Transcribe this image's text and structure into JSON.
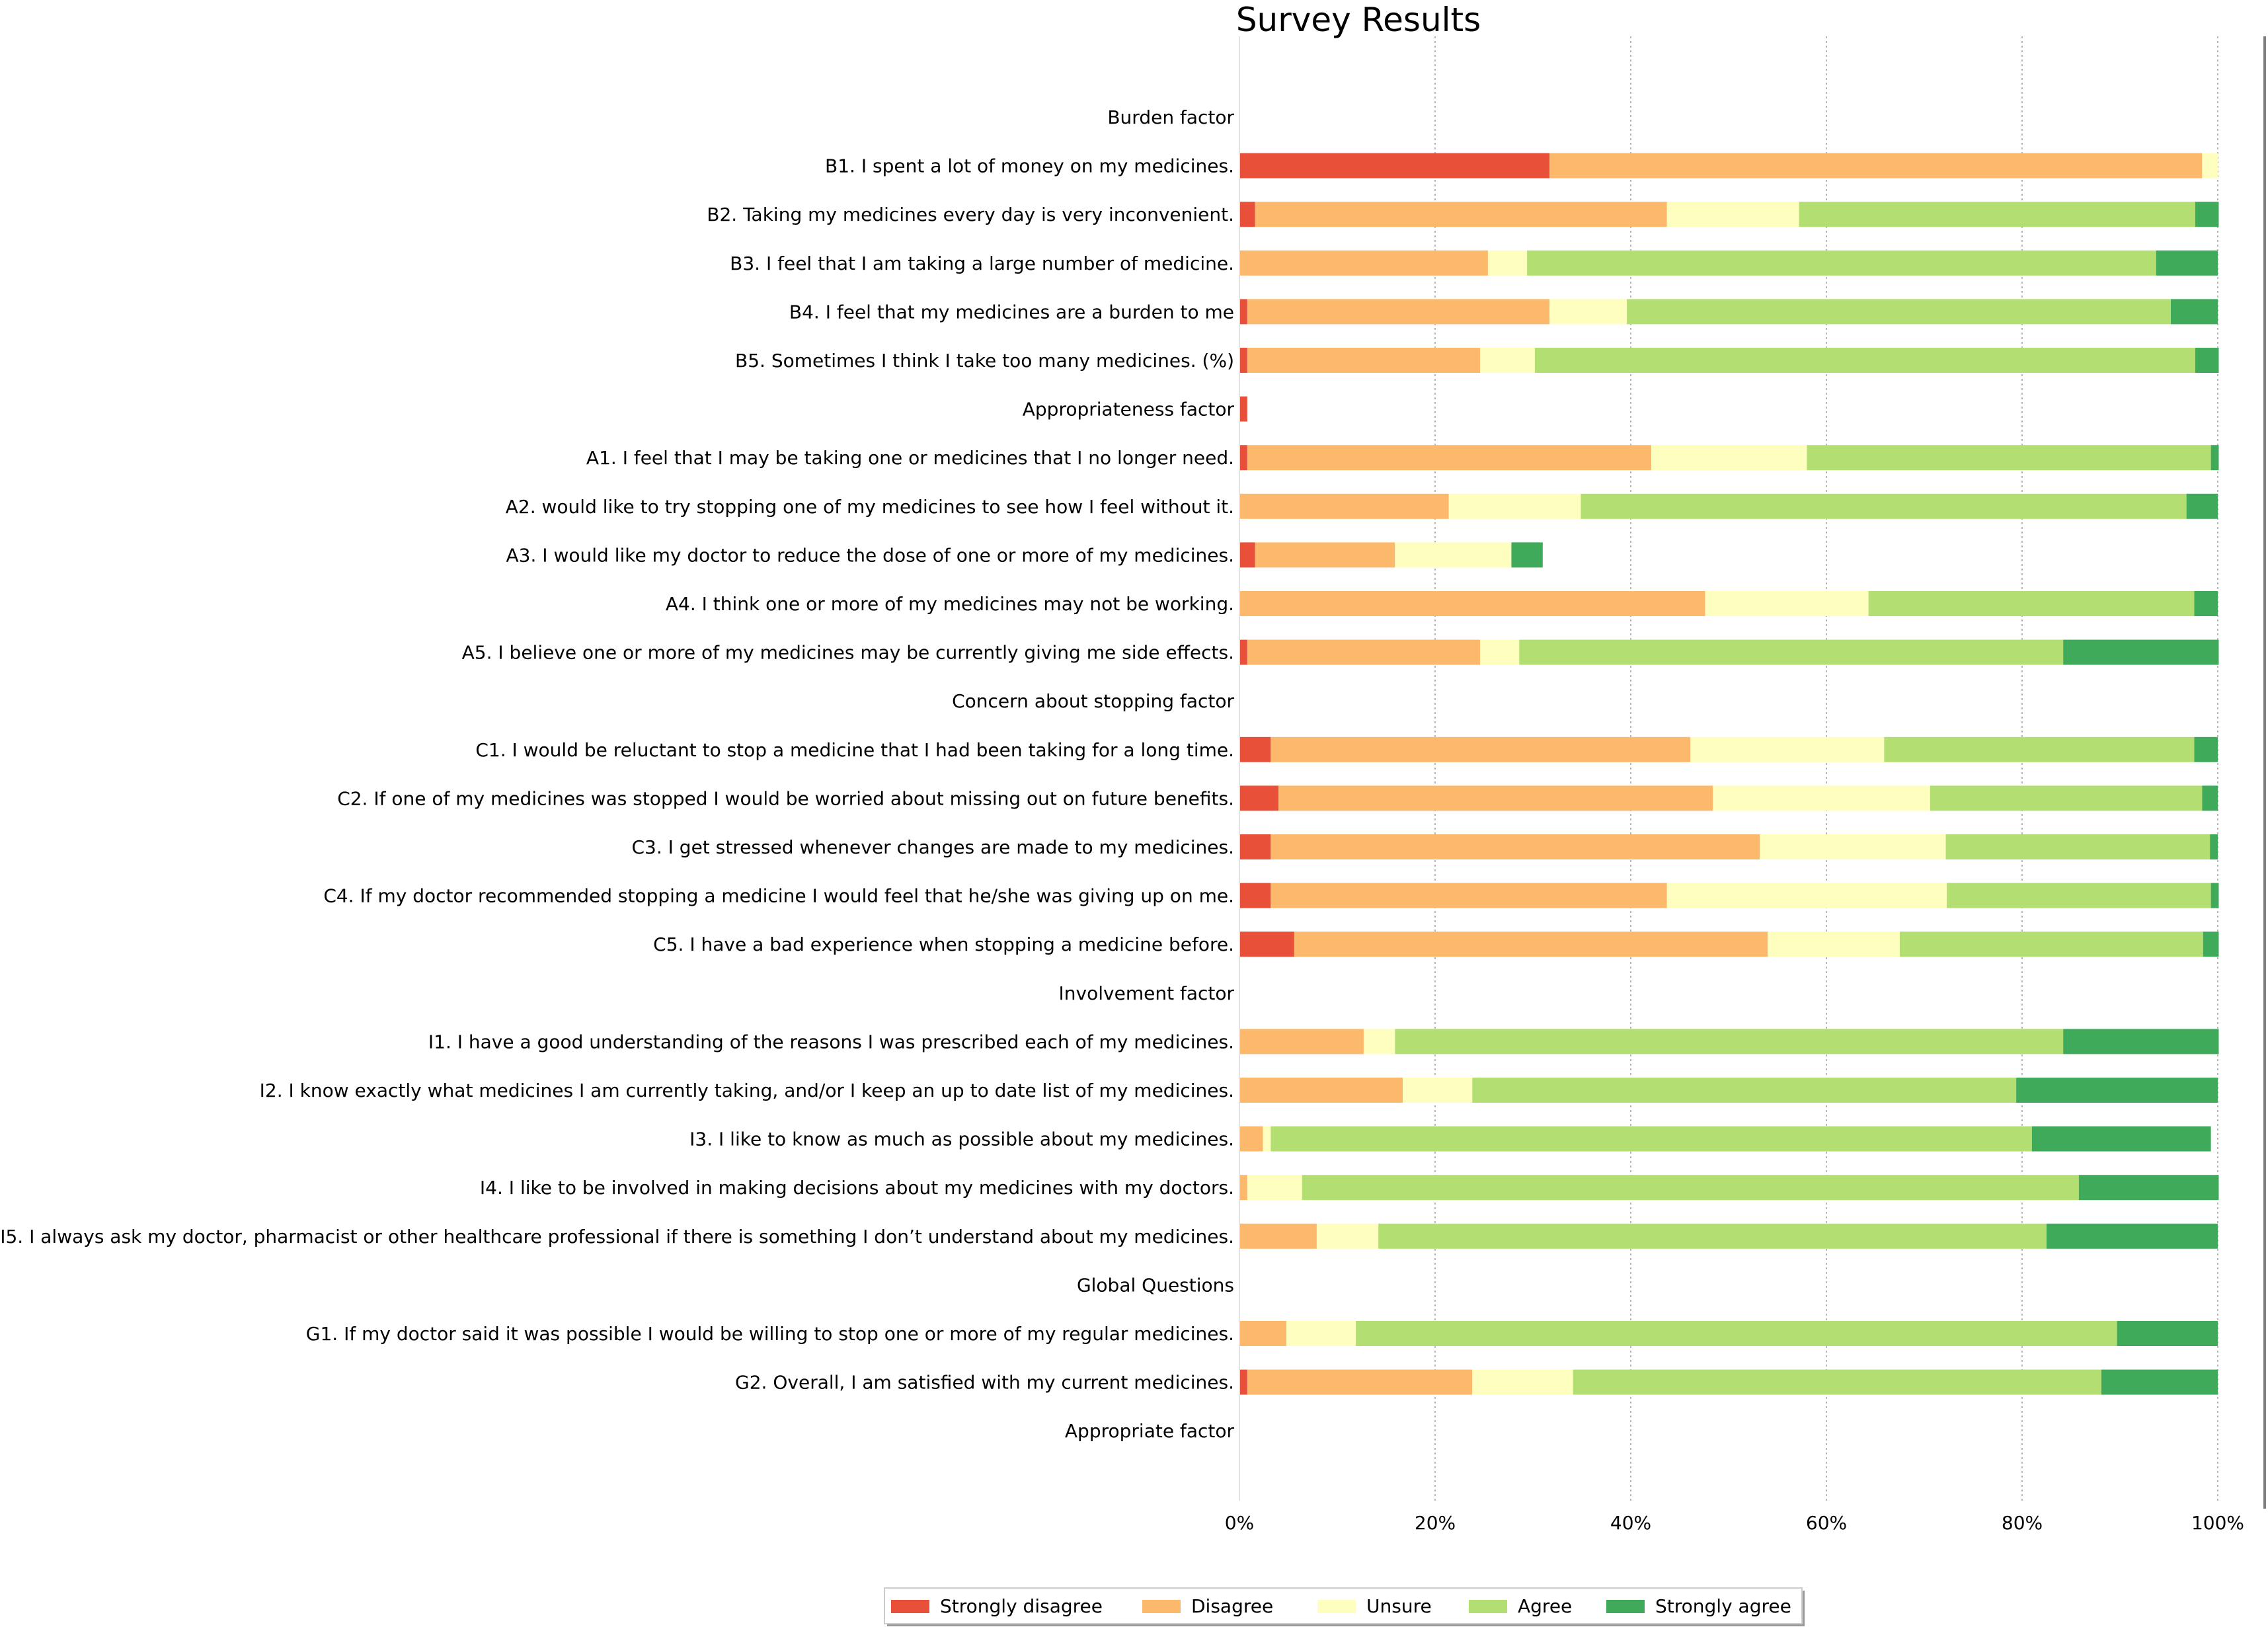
{
  "chart_data": {
    "type": "bar",
    "orientation": "horizontal",
    "stacked": true,
    "title": "Survey Results",
    "xlabel": "",
    "ylabel": "",
    "xlim": [
      0,
      100
    ],
    "x_ticks": [
      0,
      20,
      40,
      60,
      80,
      100
    ],
    "x_tick_labels": [
      "0%",
      "20%",
      "40%",
      "60%",
      "80%",
      "100%"
    ],
    "grid": "vertical dotted",
    "legend_position": "bottom-center",
    "categories": [
      "Burden factor",
      "B1. I spent a lot of money on my medicines.",
      "B2. Taking my medicines every day is very inconvenient.",
      "B3. I feel that I am taking a large number of medicine.",
      "B4. I feel that my medicines are a burden to me",
      "B5. Sometimes I think I take too many medicines. (%)",
      "Appropriateness factor",
      "A1. I feel that I may be taking one or medicines that I no longer need.",
      "A2. would like to try stopping one of my medicines to see how I feel without it.",
      "A3. I would like my doctor to reduce the dose of one or more of my medicines.",
      "A4. I think one or more of my medicines may not be working.",
      "A5. I believe one or more of my medicines may be currently giving me side effects.",
      "Concern about stopping factor",
      "C1. I would be reluctant to stop a medicine that I had been taking for a long time.",
      "C2.  If one of my medicines was stopped I would be worried about missing out on future benefits.",
      "C3. I get stressed whenever changes are made to my medicines.",
      "C4. If my doctor recommended stopping a medicine I would feel that he/she was giving up on me.",
      "C5. I have a bad experience when stopping a medicine before.",
      "Involvement factor",
      "I1. I have a good understanding of the reasons I was prescribed each of my medicines.",
      "I2. I know exactly what medicines I am currently taking, and/or I keep an up to date list of my medicines.",
      "I3. I like to know as much as possible about my medicines.",
      "I4. I like to be involved in making decisions about my medicines with my doctors.",
      "I5. I always ask my doctor, pharmacist or other healthcare professional if there is something I don’t understand about my medicines.",
      "Global Questions",
      "G1. If my doctor said it was possible I would be willing to stop one or more of my regular medicines.",
      "G2. Overall, I am satisfied with my current medicines.",
      "Appropriate factor"
    ],
    "series": [
      {
        "name": "Strongly disagree",
        "color": "#e8503a",
        "values": [
          0,
          31.7,
          1.6,
          0,
          0.8,
          0.8,
          0.8,
          0.8,
          0,
          1.6,
          0,
          0.8,
          0,
          3.2,
          4.0,
          3.2,
          3.2,
          5.6,
          0,
          0,
          0,
          0,
          0,
          0,
          0,
          0,
          0.8,
          0
        ]
      },
      {
        "name": "Disagree",
        "color": "#fdb96b",
        "values": [
          0,
          66.7,
          42.1,
          25.4,
          30.9,
          23.8,
          0,
          41.3,
          21.4,
          14.3,
          47.6,
          23.8,
          0,
          42.9,
          44.4,
          50.0,
          40.5,
          48.4,
          0,
          12.7,
          16.7,
          2.4,
          0.8,
          7.9,
          0,
          4.8,
          23.0,
          0
        ]
      },
      {
        "name": "Unsure",
        "color": "#fefebe",
        "values": [
          0,
          1.6,
          13.5,
          4.0,
          7.9,
          5.6,
          0,
          15.9,
          13.5,
          11.9,
          16.7,
          4.0,
          0,
          19.8,
          22.2,
          19.0,
          28.6,
          13.5,
          0,
          3.2,
          7.1,
          0.8,
          5.6,
          6.3,
          0,
          7.1,
          10.3,
          0
        ]
      },
      {
        "name": "Agree",
        "color": "#b3df72",
        "values": [
          0,
          0,
          40.5,
          64.3,
          55.6,
          67.5,
          0,
          41.3,
          61.9,
          0,
          33.3,
          55.6,
          0,
          31.7,
          27.8,
          27.0,
          27.0,
          31.0,
          0,
          68.3,
          55.6,
          77.8,
          79.4,
          68.3,
          0,
          77.8,
          54.0,
          0
        ]
      },
      {
        "name": "Strongly agree",
        "color": "#3faa59",
        "values": [
          0,
          0,
          2.4,
          6.3,
          4.8,
          2.4,
          0,
          0.8,
          3.2,
          3.2,
          2.4,
          15.9,
          0,
          2.4,
          1.6,
          0.8,
          0.8,
          1.6,
          0,
          15.9,
          20.6,
          18.3,
          14.3,
          17.5,
          0,
          10.3,
          11.9,
          0
        ]
      }
    ]
  }
}
